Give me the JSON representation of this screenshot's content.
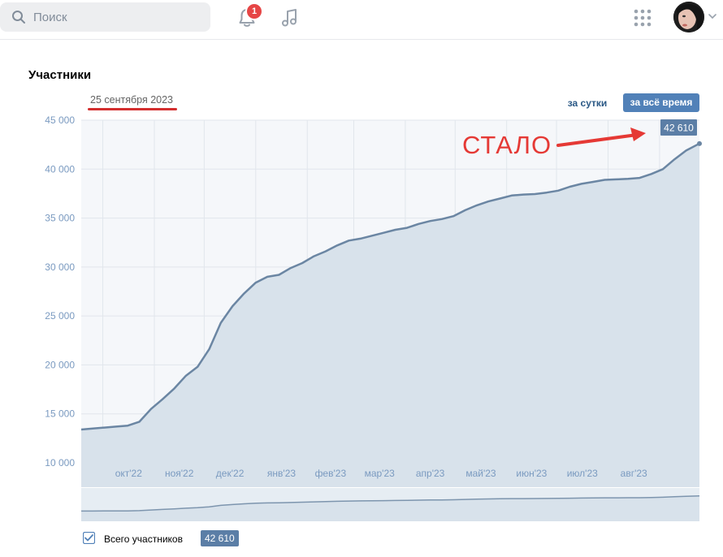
{
  "header": {
    "search_placeholder": "Поиск",
    "notifications_count": "1",
    "icons": [
      "search-icon",
      "bell-icon",
      "music-icon",
      "apps-grid-icon",
      "avatar",
      "chevron-down-icon"
    ]
  },
  "stats": {
    "title": "Участники",
    "date": "25 сентября 2023",
    "period_day": "за сутки",
    "period_all": "за всё время",
    "annotation": "СТАЛО",
    "legend_label": "Всего участников",
    "legend_value": "42 610",
    "current_value_label": "42 610"
  },
  "colors": {
    "accent": "#5181b8",
    "line": "#6b86a3",
    "area": "#d8e2eb",
    "annotation": "#e53935"
  },
  "chart_data": {
    "type": "area",
    "title": "Участники",
    "xlabel": "",
    "ylabel": "",
    "ylim": [
      10000,
      45000
    ],
    "yticks": [
      10000,
      15000,
      20000,
      25000,
      30000,
      35000,
      40000,
      45000
    ],
    "ytick_labels": [
      "10 000",
      "15 000",
      "20 000",
      "25 000",
      "30 000",
      "35 000",
      "40 000",
      "45 000"
    ],
    "xtick_labels": [
      "окт'22",
      "ноя'22",
      "дек'22",
      "янв'23",
      "фев'23",
      "мар'23",
      "апр'23",
      "май'23",
      "июн'23",
      "июл'23",
      "авг'23"
    ],
    "x": [
      "2022-09-18",
      "2022-09-25",
      "2022-10-02",
      "2022-10-09",
      "2022-10-16",
      "2022-10-23",
      "2022-10-30",
      "2022-11-06",
      "2022-11-13",
      "2022-11-20",
      "2022-11-27",
      "2022-12-04",
      "2022-12-11",
      "2022-12-18",
      "2022-12-25",
      "2023-01-01",
      "2023-01-08",
      "2023-01-15",
      "2023-01-22",
      "2023-01-29",
      "2023-02-05",
      "2023-02-12",
      "2023-02-19",
      "2023-02-26",
      "2023-03-05",
      "2023-03-12",
      "2023-03-19",
      "2023-03-26",
      "2023-04-02",
      "2023-04-09",
      "2023-04-16",
      "2023-04-23",
      "2023-04-30",
      "2023-05-07",
      "2023-05-14",
      "2023-05-21",
      "2023-05-28",
      "2023-06-04",
      "2023-06-11",
      "2023-06-18",
      "2023-06-25",
      "2023-07-02",
      "2023-07-09",
      "2023-07-16",
      "2023-07-23",
      "2023-07-30",
      "2023-08-06",
      "2023-08-13",
      "2023-08-20",
      "2023-08-27",
      "2023-09-03",
      "2023-09-10",
      "2023-09-17",
      "2023-09-25"
    ],
    "series": [
      {
        "name": "Всего участников",
        "values": [
          13400,
          13500,
          13600,
          13700,
          13800,
          14200,
          15500,
          16500,
          17600,
          18900,
          19800,
          21600,
          24300,
          26000,
          27300,
          28400,
          29000,
          29200,
          29900,
          30400,
          31100,
          31600,
          32200,
          32700,
          32900,
          33200,
          33500,
          33800,
          34000,
          34400,
          34700,
          34900,
          35200,
          35800,
          36300,
          36700,
          37000,
          37300,
          37400,
          37450,
          37600,
          37800,
          38200,
          38500,
          38700,
          38900,
          38950,
          39000,
          39100,
          39500,
          40000,
          41000,
          41900,
          42610
        ]
      }
    ],
    "grid": true,
    "legend": "bottom-left"
  }
}
